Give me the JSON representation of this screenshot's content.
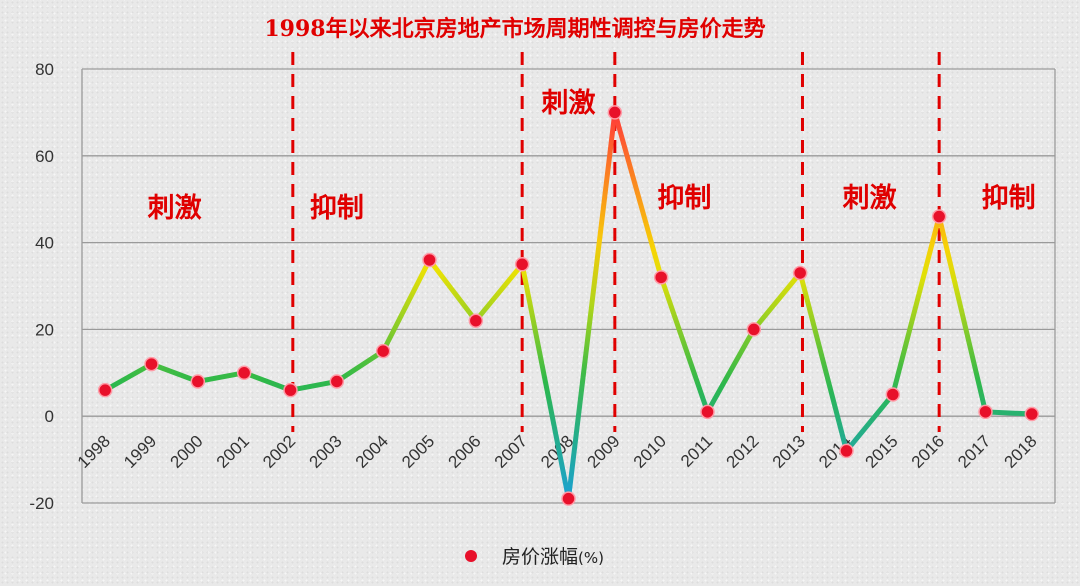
{
  "chart_data": {
    "type": "line",
    "title": "1998年以来北京房地产市场周期性调控与房价走势",
    "xlabel": "",
    "ylabel": "",
    "ylim": [
      -20,
      80
    ],
    "yticks": [
      -20,
      0,
      20,
      40,
      60,
      80
    ],
    "grid": true,
    "legend": "bottom",
    "categories": [
      "1998",
      "1999",
      "2000",
      "2001",
      "2002",
      "2003",
      "2004",
      "2005",
      "2006",
      "2007",
      "2008",
      "2009",
      "2010",
      "2011",
      "2012",
      "2013",
      "2014",
      "2015",
      "2016",
      "2017",
      "2018"
    ],
    "series": [
      {
        "name": "房价涨幅",
        "unit": "(%)",
        "values": [
          6,
          12,
          8,
          10,
          6,
          8,
          15,
          36,
          22,
          35,
          -19,
          70,
          32,
          1,
          20,
          33,
          -8,
          5,
          46,
          1,
          0.5
        ]
      }
    ],
    "dividers_after": [
      "2002",
      "2007",
      "2009",
      "2013",
      "2016"
    ],
    "phases": [
      {
        "label": "刺激",
        "position": "1999-2000"
      },
      {
        "label": "抑制",
        "position": "2003"
      },
      {
        "label": "刺激",
        "position": "2008"
      },
      {
        "label": "抑制",
        "position": "2010-2011"
      },
      {
        "label": "刺激",
        "position": "2014-2015"
      },
      {
        "label": "抑制",
        "position": "2017-2018"
      }
    ],
    "colors": {
      "low": "#1aa0d8",
      "mid_low": "#2db84a",
      "mid": "#f5e400",
      "high": "#ff3a3a",
      "marker": "#e8102a",
      "divider": "#e00000"
    }
  }
}
